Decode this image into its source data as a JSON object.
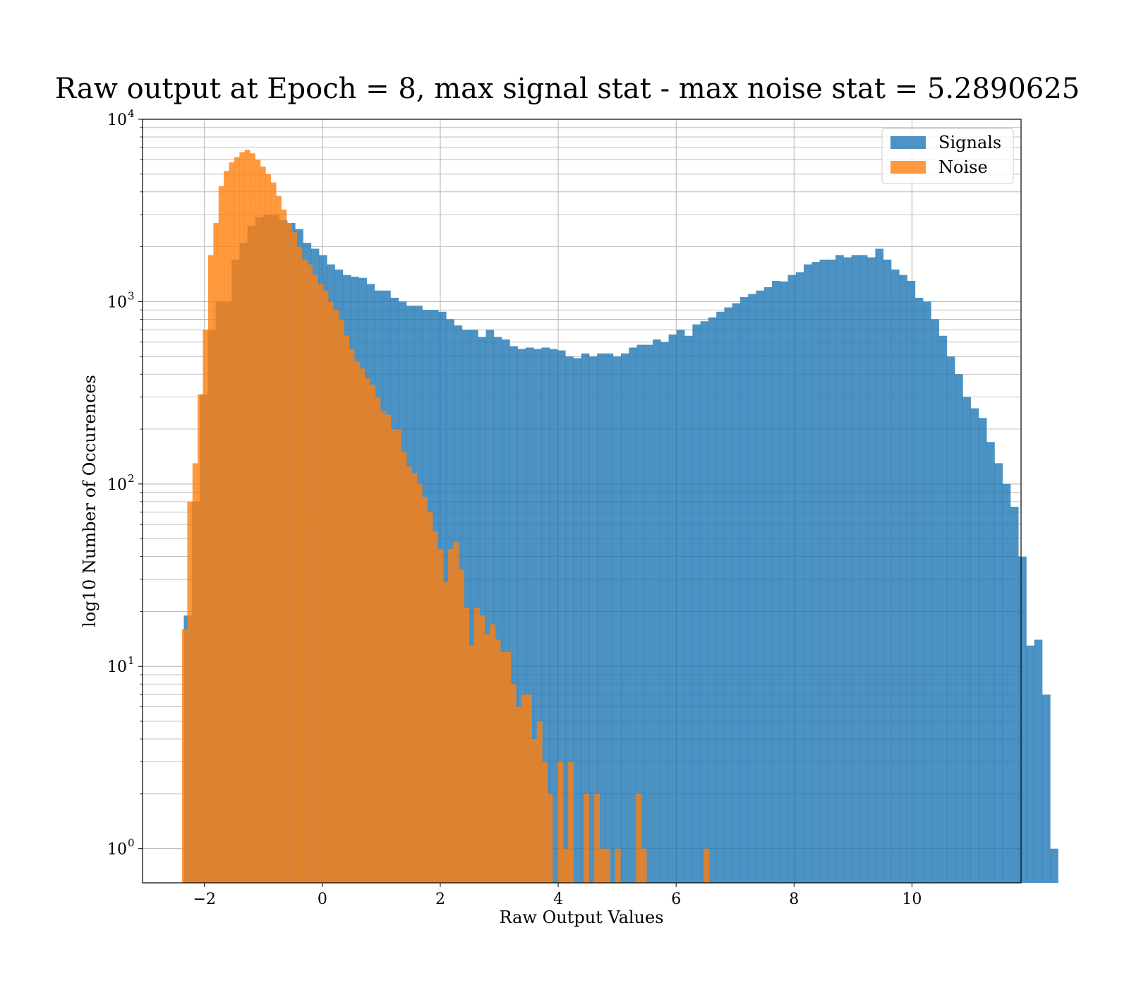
{
  "chart_data": {
    "type": "bar",
    "subtype": "histogram",
    "title": "Raw output at Epoch = 8, max signal stat - max noise stat = 5.2890625",
    "xlabel": "Raw Output Values",
    "ylabel": "log10 Number of Occurences",
    "xlim": [
      -3.05,
      11.85
    ],
    "ylim": [
      0.65,
      10000
    ],
    "yscale": "log",
    "xticks": [
      -2,
      0,
      2,
      4,
      6,
      8,
      10
    ],
    "xtick_labels": [
      "−2",
      "0",
      "2",
      "4",
      "6",
      "8",
      "10"
    ],
    "yticks": [
      {
        "value": 1,
        "base": "10",
        "exp": "0"
      },
      {
        "value": 10,
        "base": "10",
        "exp": "1"
      },
      {
        "value": 100,
        "base": "10",
        "exp": "2"
      },
      {
        "value": 1000,
        "base": "10",
        "exp": "3"
      },
      {
        "value": 10000,
        "base": "10",
        "exp": "4"
      }
    ],
    "grid": true,
    "grid_minor_y": true,
    "legend_position": "top-right",
    "series": [
      {
        "name": "Signals",
        "color": "#1f77b4",
        "alpha": 0.8,
        "bin_start": -2.35,
        "bin_width": 0.1348,
        "values": [
          19,
          80,
          310,
          700,
          1000,
          1000,
          1700,
          2100,
          2600,
          2900,
          3000,
          3000,
          2800,
          2700,
          2500,
          2100,
          1950,
          1800,
          1600,
          1500,
          1400,
          1370,
          1350,
          1250,
          1150,
          1150,
          1050,
          1000,
          950,
          950,
          900,
          900,
          880,
          800,
          740,
          700,
          700,
          640,
          700,
          640,
          620,
          570,
          550,
          560,
          550,
          560,
          550,
          540,
          500,
          490,
          520,
          500,
          520,
          520,
          500,
          520,
          560,
          580,
          580,
          620,
          600,
          660,
          700,
          650,
          750,
          780,
          820,
          880,
          930,
          980,
          1060,
          1100,
          1150,
          1200,
          1300,
          1290,
          1400,
          1450,
          1600,
          1650,
          1700,
          1700,
          1800,
          1750,
          1800,
          1800,
          1750,
          1950,
          1700,
          1500,
          1400,
          1300,
          1050,
          1000,
          800,
          650,
          500,
          400,
          300,
          260,
          230,
          170,
          130,
          100,
          75,
          40,
          13,
          14,
          7,
          1
        ]
      },
      {
        "name": "Noise",
        "color": "#ff7f0e",
        "alpha": 0.8,
        "bin_start": -2.38,
        "bin_width": 0.0885,
        "values": [
          16,
          80,
          130,
          310,
          700,
          1800,
          2700,
          4300,
          5200,
          5800,
          6200,
          6600,
          6800,
          6500,
          6000,
          5500,
          5000,
          4500,
          3800,
          3200,
          2700,
          2400,
          2000,
          1700,
          1600,
          1400,
          1250,
          1150,
          1000,
          900,
          800,
          650,
          550,
          470,
          430,
          380,
          350,
          300,
          250,
          240,
          200,
          200,
          150,
          125,
          115,
          100,
          85,
          70,
          55,
          44,
          29,
          44,
          48,
          34,
          21,
          13,
          21,
          19,
          15,
          17,
          14,
          12,
          12,
          8,
          6,
          7,
          7,
          4,
          5,
          3,
          2,
          0.6,
          3,
          1,
          3,
          0.6,
          0.6,
          2,
          0.6,
          2,
          1,
          1,
          0.6,
          1,
          0.6,
          0.6,
          0.6,
          2,
          1,
          0.6,
          0.6,
          0.6,
          0.6,
          0.6,
          0.6,
          0.6,
          0.6,
          0.6,
          0.6,
          0.6,
          1,
          0.6,
          0.6,
          0.6
        ]
      }
    ]
  }
}
